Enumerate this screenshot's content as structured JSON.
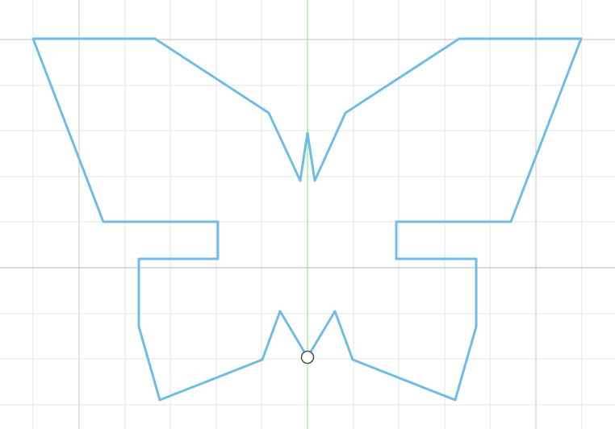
{
  "sketch": {
    "profile_color": "#6fbde6",
    "vertical_axis_color": "#8fe88f",
    "grid_color": "#e6e6e6",
    "major_grid_color": "#cfcfcf",
    "origin_marker_icon": "circle-point-icon"
  }
}
